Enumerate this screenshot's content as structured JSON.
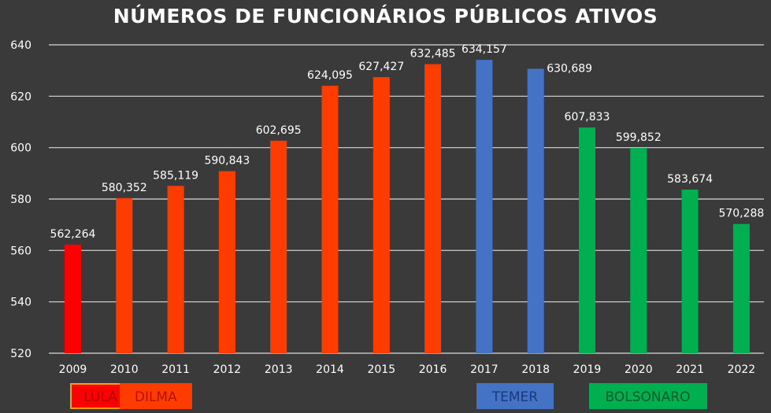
{
  "chart_data": {
    "type": "bar",
    "title": "NÚMEROS DE FUNCIONÁRIOS PÚBLICOS ATIVOS",
    "xlabel": "",
    "ylabel": "",
    "ylim": [
      520,
      640
    ],
    "yticks": [
      "520",
      "540",
      "560",
      "580",
      "600",
      "620",
      "640"
    ],
    "grid": true,
    "categories": [
      "2009",
      "2010",
      "2011",
      "2012",
      "2013",
      "2014",
      "2015",
      "2016",
      "2017",
      "2018",
      "2019",
      "2020",
      "2021",
      "2022"
    ],
    "values": [
      562.264,
      580.352,
      585.119,
      590.843,
      602.695,
      624.095,
      627.427,
      632.485,
      634.157,
      630.689,
      607.833,
      599.852,
      583.674,
      570.288
    ],
    "value_labels": [
      "562,264",
      "580,352",
      "585,119",
      "590,843",
      "602,695",
      "624,095",
      "627,427",
      "632,485",
      "634,157",
      "630,689",
      "607,833",
      "599,852",
      "583,674",
      "570,288"
    ],
    "bar_groups": [
      "LULA",
      "DILMA",
      "DILMA",
      "DILMA",
      "DILMA",
      "DILMA",
      "DILMA",
      "DILMA",
      "TEMER",
      "TEMER",
      "BOLSONARO",
      "BOLSONARO",
      "BOLSONARO",
      "BOLSONARO"
    ],
    "legend": [
      {
        "name": "LULA",
        "color": "#ff0000",
        "text_color": "#b00000",
        "border": "#ffa000"
      },
      {
        "name": "DILMA",
        "color": "#ff3c00",
        "text_color": "#b81000",
        "border": "#ff3c00"
      },
      {
        "name": "TEMER",
        "color": "#4472c4",
        "text_color": "#1a3a7a",
        "border": "#4472c4"
      },
      {
        "name": "BOLSONARO",
        "color": "#00b050",
        "text_color": "#0a5a2a",
        "border": "#00b050"
      }
    ],
    "legend_placement": "bottom"
  },
  "colors": {
    "background": "#3a3a3a",
    "grid": "#d9d9d9",
    "text": "#ffffff"
  }
}
